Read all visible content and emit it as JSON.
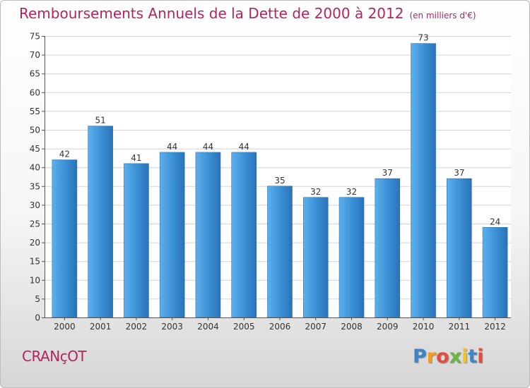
{
  "chart_data": {
    "type": "bar",
    "title": "Remboursements Annuels de la Dette de 2000 à 2012",
    "subtitle": "(en milliers d'€)",
    "categories": [
      "2000",
      "2001",
      "2002",
      "2003",
      "2004",
      "2005",
      "2006",
      "2007",
      "2008",
      "2009",
      "2010",
      "2011",
      "2012"
    ],
    "values": [
      42,
      51,
      41,
      44,
      44,
      44,
      35,
      32,
      32,
      37,
      73,
      37,
      24
    ],
    "ylim": [
      0,
      75
    ],
    "yticks": [
      "0",
      "5",
      "10",
      "15",
      "20",
      "25",
      "30",
      "35",
      "40",
      "45",
      "50",
      "55",
      "60",
      "65",
      "70",
      "75"
    ],
    "grid": true,
    "bar_color": "#3a8fd4",
    "bar_color_light": "#5db0ec",
    "bar_color_dark": "#2a72b8"
  },
  "commune": "CRANçOT",
  "logo": {
    "letters": [
      {
        "char": "P",
        "color": "#3a86c8"
      },
      {
        "char": "r",
        "color": "#f39c1e"
      },
      {
        "char": "o",
        "color": "#e84a3c"
      },
      {
        "char": "x",
        "color": "#69b83a"
      },
      {
        "char": "i",
        "color": "#f5c21b"
      },
      {
        "char": "t",
        "color": "#3a86c8"
      },
      {
        "char": "i",
        "color": "#e84a3c"
      }
    ]
  },
  "colors": {
    "title": "#b4245e",
    "grid": "#d4d4d4",
    "axis": "#555555"
  }
}
